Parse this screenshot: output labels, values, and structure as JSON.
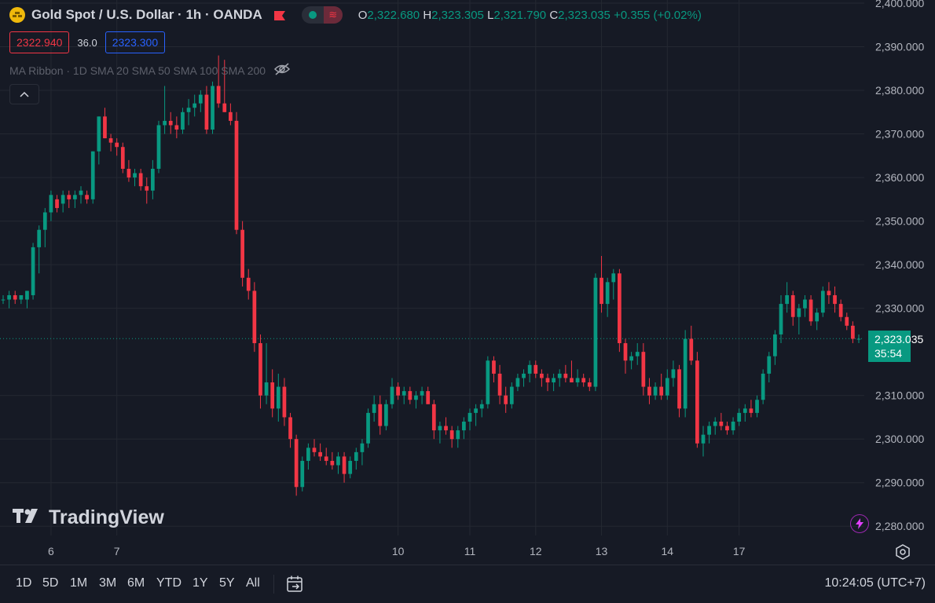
{
  "header": {
    "symbol_title": "Gold Spot / U.S. Dollar · 1h · OANDA",
    "open_label": "O",
    "open": "2,322.680",
    "high_label": "H",
    "high": "2,323.305",
    "low_label": "L",
    "low": "2,321.790",
    "close_label": "C",
    "close": "2,323.035",
    "change": "+0.355 (+0.02%)"
  },
  "quote": {
    "sell": "2322.940",
    "spread": "36.0",
    "buy": "2323.300"
  },
  "indicator": {
    "label": "MA Ribbon · 1D SMA 20 SMA 50 SMA 100 SMA 200"
  },
  "price_tag": {
    "price": "2,323.035",
    "countdown": "35:54"
  },
  "watermark": {
    "text": "TradingView"
  },
  "bottom_bar": {
    "ranges": [
      "1D",
      "5D",
      "1M",
      "3M",
      "6M",
      "YTD",
      "1Y",
      "5Y",
      "All"
    ],
    "clock": "10:24:05 (UTC+7)"
  },
  "colors": {
    "up": "#089981",
    "down": "#f23645",
    "background": "#161a25",
    "grid": "#242832",
    "text": "#d1d4dc"
  },
  "chart_data": {
    "type": "candlestick",
    "ylim": [
      2275,
      2400
    ],
    "y_ticks": [
      "2,400.000",
      "2,390.000",
      "2,380.000",
      "2,370.000",
      "2,360.000",
      "2,350.000",
      "2,340.000",
      "2,330.000",
      "2,310.000",
      "2,300.000",
      "2,290.000",
      "2,280.000"
    ],
    "x_ticks": [
      "6",
      "7",
      "10",
      "11",
      "12",
      "13",
      "14",
      "17"
    ],
    "last_price": 2323.035,
    "ohlc": [
      [
        2332,
        2333,
        2331,
        2332
      ],
      [
        2332,
        2334,
        2330,
        2333
      ],
      [
        2333,
        2334,
        2331,
        2332
      ],
      [
        2332,
        2333,
        2331,
        2333
      ],
      [
        2332,
        2334,
        2330,
        2334
      ],
      [
        2333,
        2345,
        2332,
        2344
      ],
      [
        2344,
        2349,
        2338,
        2348
      ],
      [
        2348,
        2353,
        2344,
        2352
      ],
      [
        2352,
        2357,
        2350,
        2356
      ],
      [
        2355,
        2356,
        2352,
        2353
      ],
      [
        2354,
        2357,
        2352,
        2356
      ],
      [
        2356,
        2357,
        2353,
        2355
      ],
      [
        2355,
        2357,
        2353,
        2356
      ],
      [
        2356,
        2358,
        2354,
        2357
      ],
      [
        2356,
        2357,
        2354,
        2355
      ],
      [
        2355,
        2366,
        2354,
        2366
      ],
      [
        2366,
        2374,
        2363,
        2374
      ],
      [
        2374,
        2376,
        2369,
        2369
      ],
      [
        2369,
        2370,
        2366,
        2368
      ],
      [
        2368,
        2369,
        2365,
        2367
      ],
      [
        2367,
        2368,
        2361,
        2362
      ],
      [
        2362,
        2364,
        2359,
        2360
      ],
      [
        2360,
        2362,
        2358,
        2361
      ],
      [
        2361,
        2362,
        2357,
        2358
      ],
      [
        2358,
        2360,
        2354,
        2357
      ],
      [
        2357,
        2364,
        2355,
        2362
      ],
      [
        2362,
        2373,
        2361,
        2372
      ],
      [
        2372,
        2381,
        2370,
        2373
      ],
      [
        2373,
        2375,
        2370,
        2372
      ],
      [
        2372,
        2374,
        2369,
        2371
      ],
      [
        2371,
        2376,
        2370,
        2375
      ],
      [
        2375,
        2378,
        2372,
        2376
      ],
      [
        2376,
        2379,
        2374,
        2377
      ],
      [
        2377,
        2380,
        2375,
        2379
      ],
      [
        2379,
        2381,
        2370,
        2371
      ],
      [
        2371,
        2382,
        2370,
        2381
      ],
      [
        2381,
        2388,
        2376,
        2377
      ],
      [
        2377,
        2387,
        2375,
        2375
      ],
      [
        2375,
        2377,
        2372,
        2373
      ],
      [
        2373,
        2375,
        2347,
        2348
      ],
      [
        2348,
        2350,
        2335,
        2337
      ],
      [
        2337,
        2339,
        2332,
        2334
      ],
      [
        2334,
        2336,
        2320,
        2322
      ],
      [
        2322,
        2324,
        2307,
        2310
      ],
      [
        2310,
        2322,
        2308,
        2313
      ],
      [
        2313,
        2316,
        2305,
        2307
      ],
      [
        2307,
        2315,
        2304,
        2312
      ],
      [
        2312,
        2314,
        2303,
        2305
      ],
      [
        2305,
        2306,
        2298,
        2300
      ],
      [
        2300,
        2301,
        2287,
        2289
      ],
      [
        2289,
        2296,
        2288,
        2295
      ],
      [
        2295,
        2299,
        2293,
        2298
      ],
      [
        2298,
        2300,
        2296,
        2297
      ],
      [
        2297,
        2299,
        2295,
        2296
      ],
      [
        2296,
        2298,
        2294,
        2295
      ],
      [
        2295,
        2297,
        2293,
        2294
      ],
      [
        2294,
        2297,
        2292,
        2296
      ],
      [
        2296,
        2297,
        2290,
        2292
      ],
      [
        2292,
        2296,
        2291,
        2295
      ],
      [
        2295,
        2298,
        2293,
        2297
      ],
      [
        2297,
        2300,
        2294,
        2299
      ],
      [
        2299,
        2307,
        2298,
        2306
      ],
      [
        2306,
        2310,
        2304,
        2308
      ],
      [
        2308,
        2310,
        2301,
        2303
      ],
      [
        2303,
        2309,
        2302,
        2308
      ],
      [
        2308,
        2314,
        2307,
        2312
      ],
      [
        2312,
        2313,
        2309,
        2310
      ],
      [
        2310,
        2312,
        2308,
        2311
      ],
      [
        2311,
        2312,
        2308,
        2309
      ],
      [
        2309,
        2311,
        2307,
        2310
      ],
      [
        2310,
        2312,
        2308,
        2311
      ],
      [
        2311,
        2312,
        2308,
        2308
      ],
      [
        2308,
        2309,
        2300,
        2302
      ],
      [
        2302,
        2304,
        2299,
        2303
      ],
      [
        2303,
        2305,
        2301,
        2302
      ],
      [
        2302,
        2303,
        2298,
        2300
      ],
      [
        2300,
        2303,
        2298,
        2302
      ],
      [
        2302,
        2305,
        2300,
        2304
      ],
      [
        2304,
        2307,
        2302,
        2306
      ],
      [
        2306,
        2308,
        2303,
        2307
      ],
      [
        2307,
        2309,
        2305,
        2308
      ],
      [
        2308,
        2319,
        2307,
        2318
      ],
      [
        2318,
        2319,
        2313,
        2315
      ],
      [
        2315,
        2317,
        2308,
        2310
      ],
      [
        2310,
        2312,
        2306,
        2308
      ],
      [
        2308,
        2313,
        2307,
        2312
      ],
      [
        2312,
        2315,
        2311,
        2314
      ],
      [
        2314,
        2316,
        2312,
        2315
      ],
      [
        2315,
        2318,
        2313,
        2317
      ],
      [
        2317,
        2318,
        2314,
        2315
      ],
      [
        2315,
        2316,
        2312,
        2314
      ],
      [
        2314,
        2315,
        2311,
        2313
      ],
      [
        2313,
        2315,
        2311,
        2314
      ],
      [
        2314,
        2316,
        2312,
        2315
      ],
      [
        2315,
        2317,
        2313,
        2314
      ],
      [
        2314,
        2318,
        2313,
        2313
      ],
      [
        2313,
        2316,
        2312,
        2314
      ],
      [
        2314,
        2315,
        2312,
        2313
      ],
      [
        2313,
        2314,
        2311,
        2312
      ],
      [
        2312,
        2338,
        2311,
        2337
      ],
      [
        2337,
        2342,
        2329,
        2331
      ],
      [
        2331,
        2337,
        2328,
        2336
      ],
      [
        2336,
        2339,
        2332,
        2338
      ],
      [
        2338,
        2339,
        2320,
        2322
      ],
      [
        2322,
        2323,
        2315,
        2318
      ],
      [
        2318,
        2320,
        2316,
        2319
      ],
      [
        2319,
        2322,
        2317,
        2320
      ],
      [
        2320,
        2322,
        2310,
        2312
      ],
      [
        2312,
        2314,
        2308,
        2310
      ],
      [
        2310,
        2313,
        2309,
        2312
      ],
      [
        2312,
        2315,
        2309,
        2310
      ],
      [
        2310,
        2316,
        2309,
        2314
      ],
      [
        2314,
        2318,
        2312,
        2316
      ],
      [
        2316,
        2317,
        2305,
        2307
      ],
      [
        2307,
        2325,
        2305,
        2323
      ],
      [
        2323,
        2326,
        2317,
        2318
      ],
      [
        2318,
        2320,
        2298,
        2299
      ],
      [
        2299,
        2303,
        2296,
        2301
      ],
      [
        2301,
        2304,
        2299,
        2303
      ],
      [
        2303,
        2305,
        2301,
        2304
      ],
      [
        2304,
        2306,
        2302,
        2303
      ],
      [
        2303,
        2304,
        2301,
        2302
      ],
      [
        2302,
        2305,
        2301,
        2304
      ],
      [
        2304,
        2307,
        2303,
        2306
      ],
      [
        2306,
        2308,
        2304,
        2307
      ],
      [
        2307,
        2309,
        2305,
        2306
      ],
      [
        2306,
        2310,
        2305,
        2309
      ],
      [
        2309,
        2316,
        2308,
        2315
      ],
      [
        2315,
        2320,
        2313,
        2319
      ],
      [
        2319,
        2325,
        2317,
        2324
      ],
      [
        2324,
        2333,
        2322,
        2331
      ],
      [
        2331,
        2336,
        2329,
        2333
      ],
      [
        2333,
        2334,
        2326,
        2328
      ],
      [
        2328,
        2331,
        2324,
        2330
      ],
      [
        2330,
        2333,
        2328,
        2332
      ],
      [
        2332,
        2333,
        2326,
        2327
      ],
      [
        2327,
        2330,
        2325,
        2329
      ],
      [
        2329,
        2335,
        2328,
        2334
      ],
      [
        2334,
        2336,
        2331,
        2333
      ],
      [
        2333,
        2335,
        2329,
        2331
      ],
      [
        2331,
        2332,
        2327,
        2328
      ],
      [
        2328,
        2329,
        2325,
        2326
      ],
      [
        2326,
        2327,
        2322,
        2323
      ],
      [
        2323,
        2324,
        2322,
        2323
      ]
    ]
  }
}
